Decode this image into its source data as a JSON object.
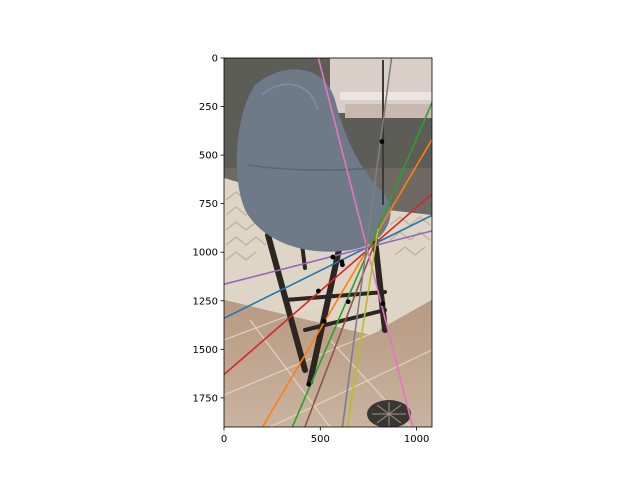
{
  "chart_data": {
    "type": "scatter",
    "title": "",
    "xlabel": "",
    "ylabel": "",
    "xlim": [
      0,
      1080
    ],
    "ylim": [
      1900,
      0
    ],
    "x_ticks": [
      0,
      500,
      1000
    ],
    "y_ticks": [
      0,
      250,
      500,
      750,
      1000,
      1250,
      1500,
      1750
    ],
    "grid": false,
    "legend": "none",
    "background": "photo of a gray upholstered bar stool with dark wooden legs on a woven rug and tiled floor",
    "points": [
      {
        "x": 820,
        "y": 430
      },
      {
        "x": 565,
        "y": 1025
      },
      {
        "x": 612,
        "y": 1050
      },
      {
        "x": 615,
        "y": 1065
      },
      {
        "x": 490,
        "y": 1200
      },
      {
        "x": 645,
        "y": 1255
      },
      {
        "x": 825,
        "y": 1265
      },
      {
        "x": 520,
        "y": 1355
      },
      {
        "x": 440,
        "y": 1680
      }
    ],
    "lines": [
      {
        "color": "#1f77b4",
        "x": [
          0,
          1080
        ],
        "y": [
          1340,
          810
        ]
      },
      {
        "color": "#ff7f0e",
        "x": [
          200,
          1080
        ],
        "y": [
          1900,
          420
        ]
      },
      {
        "color": "#2ca02c",
        "x": [
          355,
          1080
        ],
        "y": [
          1900,
          230
        ]
      },
      {
        "color": "#d62728",
        "x": [
          0,
          1080
        ],
        "y": [
          1630,
          700
        ]
      },
      {
        "color": "#9467bd",
        "x": [
          0,
          1080
        ],
        "y": [
          1165,
          890
        ]
      },
      {
        "color": "#8c564b",
        "x": [
          420,
          780
        ],
        "y": [
          1900,
          960
        ]
      },
      {
        "color": "#e377c2",
        "x": [
          490,
          980
        ],
        "y": [
          0,
          1900
        ]
      },
      {
        "color": "#7f7f7f",
        "x": [
          615,
          870
        ],
        "y": [
          1900,
          0
        ]
      },
      {
        "color": "#bcbd22",
        "x": [
          640,
          800
        ],
        "y": [
          1900,
          880
        ]
      }
    ]
  }
}
